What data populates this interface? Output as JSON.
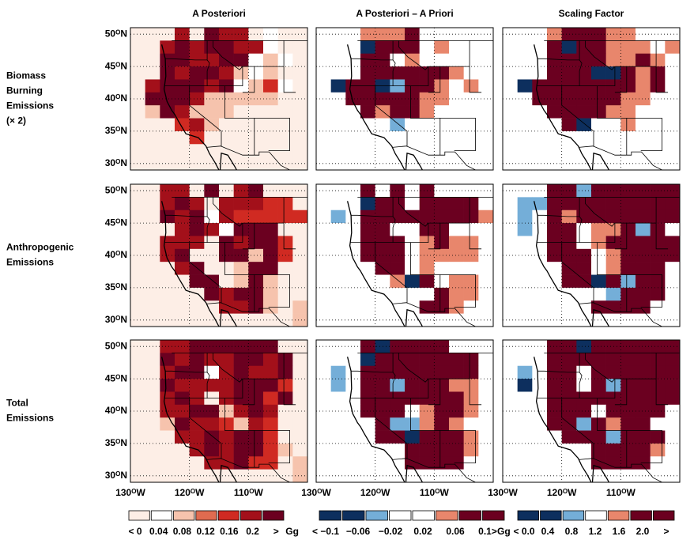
{
  "column_titles": [
    "A Posteriori",
    "A Posteriori – A Priori",
    "Scaling Factor"
  ],
  "row_labels": [
    [
      "Biomass",
      "Burning",
      "Emissions",
      "(× 2)"
    ],
    [
      "Anthropogenic",
      "Emissions"
    ],
    [
      "Total",
      "Emissions"
    ]
  ],
  "axes": {
    "xlim": [
      -130,
      -100
    ],
    "ylim": [
      29,
      51
    ],
    "xticks": [
      {
        "value": -130,
        "label": "130ᴼW"
      },
      {
        "value": -120,
        "label": "120ᴼW"
      },
      {
        "value": -110,
        "label": "110ᴼW"
      }
    ],
    "yticks": [
      {
        "value": 50,
        "label": "50ᴼN"
      },
      {
        "value": 45,
        "label": "45ᴼN"
      },
      {
        "value": 40,
        "label": "40ᴼN"
      },
      {
        "value": 35,
        "label": "35ᴼN"
      },
      {
        "value": 30,
        "label": "30ᴼN"
      }
    ],
    "grid": true
  },
  "colorbars": [
    {
      "colors": [
        "#fdeee6",
        "#ffffff",
        "#f6c3ad",
        "#e06b50",
        "#d02a22",
        "#a3101a",
        "#6b0020"
      ],
      "labels": [
        "< 0",
        "0.04",
        "0.08",
        "0.12",
        "0.16",
        "0.2",
        ">"
      ],
      "unit": "Gg"
    },
    {
      "colors": [
        "#0d2f5e",
        "#0d2f5e",
        "#74aed8",
        "#ffffff",
        "#ffffff",
        "#e8866c",
        "#6b0020",
        "#6b0020"
      ],
      "labels": [
        "< −0.1",
        "−0.06",
        "−0.02",
        "0.02",
        "0.06",
        "0.1>"
      ],
      "unit": "Gg"
    },
    {
      "colors": [
        "#0d2f5e",
        "#0d2f5e",
        "#74aed8",
        "#ffffff",
        "#e8866c",
        "#6b0020",
        "#6b0020"
      ],
      "labels": [
        "< 0.0",
        "0.4",
        "0.8",
        "1.2",
        "1.6",
        "2.0",
        ">"
      ]
    }
  ],
  "chart_data": [
    {
      "type": "grid-map",
      "colors": [
        "#fdeee6",
        "#ffffff",
        "#f6c3ad",
        "#e06b50",
        "#d02a22",
        "#a3101a",
        "#6b0020"
      ],
      "cells": [
        "000506550100",
        "005656655100",
        "006655661210",
        "006566521200",
        "056665612410",
        "066652222200",
        "026522200000",
        "000452000000",
        "000040000000",
        "000000000000",
        "000000000000"
      ]
    },
    {
      "type": "grid-map",
      "colors": [
        "#ffffff",
        "#0d2f5e",
        "#74aed8",
        "#e8866c",
        "#6b0020"
      ],
      "cells": [
        "000333400000",
        "000144403000",
        "000440300000",
        "000444444300",
        "014412443030",
        "004444433000",
        "000434430000",
        "000002000000",
        "000000000000",
        "000000000000",
        "000000000000"
      ]
    },
    {
      "type": "grid-map",
      "colors": [
        "#ffffff",
        "#0d2f5e",
        "#74aed8",
        "#e8866c",
        "#6b0020"
      ],
      "cells": [
        "000344433000",
        "000414433303",
        "000444433430",
        "000444114340",
        "014444444340",
        "004444443300",
        "000444433000",
        "000041003000",
        "000000000000",
        "000000000000",
        "000000000000"
      ]
    },
    {
      "type": "grid-map",
      "colors": [
        "#fdeee6",
        "#ffffff",
        "#f6c3ad",
        "#e06b50",
        "#d02a22",
        "#a3101a",
        "#6b0020"
      ],
      "cells": [
        "005506056000",
        "005650555440",
        "006561544444",
        "000565166600",
        "005550656640",
        "005600662640",
        "000560026600",
        "000066026200",
        "000006566200",
        "000000556202",
        "000000000002"
      ]
    },
    {
      "type": "grid-map",
      "colors": [
        "#ffffff",
        "#0d2f5e",
        "#74aed8",
        "#e8866c",
        "#6b0020"
      ],
      "cells": [
        "000404040000",
        "000144044440",
        "020444444443",
        "000440044000",
        "000444034330",
        "000444033330",
        "000044030000",
        "000003140330",
        "000000004330",
        "000000044300",
        "000000000000"
      ]
    },
    {
      "type": "grid-map",
      "colors": [
        "#ffffff",
        "#0d2f5e",
        "#74aed8",
        "#e8866c",
        "#6b0020"
      ],
      "cells": [
        "000442444444",
        "022444444444",
        "020434444444",
        "020440334240",
        "000440344444",
        "000444034444",
        "000044034440",
        "000044142440",
        "000000024440",
        "000000444400",
        "000000000000"
      ]
    },
    {
      "type": "grid-map",
      "colors": [
        "#fdeee6",
        "#ffffff",
        "#f6c3ad",
        "#e06b50",
        "#d02a22",
        "#a3101a",
        "#6b0020"
      ],
      "cells": [
        "005566666600",
        "006565566560",
        "005661565560",
        "006555566640",
        "005650566460",
        "005566256500",
        "002655425400",
        "000556566400",
        "000056566420",
        "000005564402",
        "000000000002"
      ]
    },
    {
      "type": "grid-map",
      "colors": [
        "#ffffff",
        "#0d2f5e",
        "#74aed8",
        "#e8866c",
        "#6b0020"
      ],
      "cells": [
        "000414444000",
        "000144444440",
        "020444444440",
        "020442444330",
        "000444444430",
        "000444034430",
        "000042234300",
        "000044144430",
        "000000444430",
        "000000444400",
        "000000000000"
      ]
    },
    {
      "type": "grid-map",
      "colors": [
        "#ffffff",
        "#0d2f5e",
        "#74aed8",
        "#e8866c",
        "#6b0020"
      ],
      "cells": [
        "000441444444",
        "000444444444",
        "020440444444",
        "010440424444",
        "000444444444",
        "000444044440",
        "000442434400",
        "000044424440",
        "000000444430",
        "000000444400",
        "000000000000"
      ]
    }
  ]
}
